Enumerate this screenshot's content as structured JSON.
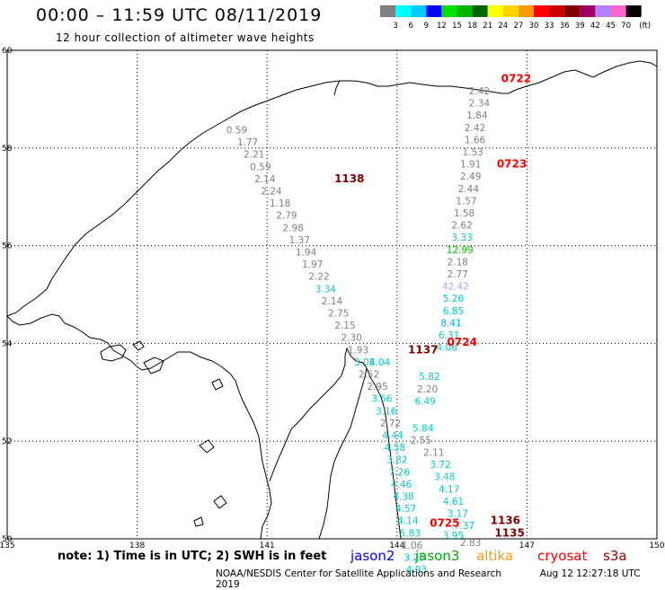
{
  "title": "00:00 – 11:59 UTC 08/11/2019",
  "subtitle": "12 hour collection of altimeter wave heights",
  "note": "note: 1) Time is in UTC; 2) SWH is in feet",
  "credit": "NOAA/NESDIS Center for Satellite Applications and Research",
  "generated": "Aug 12 12:27:18 UTC 2019",
  "legend": {
    "unit": "(ft)",
    "labels": [
      "3",
      "6",
      "9",
      "12",
      "15",
      "18",
      "21",
      "24",
      "27",
      "30",
      "33",
      "36",
      "39",
      "42",
      "45",
      "70"
    ],
    "colors": [
      "#7f7f7f",
      "#00ffff",
      "#00ccff",
      "#0000ff",
      "#00e100",
      "#00b400",
      "#006400",
      "#ffff00",
      "#ffd200",
      "#ff9900",
      "#ff0000",
      "#c80000",
      "#800000",
      "#a00060",
      "#b480ff",
      "#ff66cc",
      "#000000"
    ]
  },
  "satellites": [
    {
      "name": "jason2",
      "color": "#0000ff"
    },
    {
      "name": "jason3",
      "color": "#00aa00"
    },
    {
      "name": "altika",
      "color": "#ff9900"
    },
    {
      "name": "cryosat",
      "color": "#ff0000"
    },
    {
      "name": "s3a",
      "color": "#a00000"
    }
  ],
  "axes": {
    "lon_ticks": [
      "135",
      "138",
      "141",
      "144",
      "147",
      "150"
    ],
    "lat_ticks": [
      "50",
      "52",
      "54",
      "56",
      "58",
      "60"
    ]
  },
  "track_times": [
    {
      "label": "0722",
      "color": "#ff0000",
      "lon": 146.75,
      "lat": 59.35
    },
    {
      "label": "0723",
      "color": "#ff0000",
      "lon": 146.65,
      "lat": 57.6
    },
    {
      "label": "1138",
      "color": "#800000",
      "lon": 142.9,
      "lat": 57.3
    },
    {
      "label": "0724",
      "color": "#ff0000",
      "lon": 145.5,
      "lat": 53.95
    },
    {
      "label": "1137",
      "color": "#800000",
      "lon": 144.6,
      "lat": 53.8
    },
    {
      "label": "0725",
      "color": "#ff0000",
      "lon": 145.1,
      "lat": 50.25
    },
    {
      "label": "1136",
      "color": "#800000",
      "lon": 146.5,
      "lat": 50.3
    },
    {
      "label": "1135",
      "color": "#800000",
      "lon": 146.6,
      "lat": 50.05
    }
  ],
  "track_east": [
    {
      "v": "2.42",
      "c": "#808080",
      "lon": 145.9,
      "lat": 59.1
    },
    {
      "v": "2.34",
      "c": "#808080",
      "lon": 145.9,
      "lat": 58.85
    },
    {
      "v": "1.84",
      "c": "#808080",
      "lon": 145.85,
      "lat": 58.6
    },
    {
      "v": "2.42",
      "c": "#808080",
      "lon": 145.8,
      "lat": 58.35
    },
    {
      "v": "1.66",
      "c": "#808080",
      "lon": 145.8,
      "lat": 58.1
    },
    {
      "v": "1.53",
      "c": "#808080",
      "lon": 145.75,
      "lat": 57.85
    },
    {
      "v": "1.91",
      "c": "#808080",
      "lon": 145.7,
      "lat": 57.6
    },
    {
      "v": "2.49",
      "c": "#808080",
      "lon": 145.7,
      "lat": 57.35
    },
    {
      "v": "2.44",
      "c": "#808080",
      "lon": 145.65,
      "lat": 57.1
    },
    {
      "v": "1.57",
      "c": "#808080",
      "lon": 145.6,
      "lat": 56.85
    },
    {
      "v": "1.58",
      "c": "#808080",
      "lon": 145.55,
      "lat": 56.6
    },
    {
      "v": "2.62",
      "c": "#808080",
      "lon": 145.5,
      "lat": 56.35
    },
    {
      "v": "3.33",
      "c": "#00cccc",
      "lon": 145.5,
      "lat": 56.1
    },
    {
      "v": "12.99",
      "c": "#00c800",
      "lon": 145.45,
      "lat": 55.85
    },
    {
      "v": "2.18",
      "c": "#808080",
      "lon": 145.4,
      "lat": 55.6
    },
    {
      "v": "2.77",
      "c": "#808080",
      "lon": 145.4,
      "lat": 55.35
    },
    {
      "v": "42.42",
      "c": "#b4a0e0",
      "lon": 145.35,
      "lat": 55.1
    },
    {
      "v": "5.26",
      "c": "#00cccc",
      "lon": 145.3,
      "lat": 54.85
    },
    {
      "v": "6.85",
      "c": "#00cccc",
      "lon": 145.3,
      "lat": 54.6
    },
    {
      "v": "8.41",
      "c": "#00aaee",
      "lon": 145.25,
      "lat": 54.35
    },
    {
      "v": "6.31",
      "c": "#00cccc",
      "lon": 145.2,
      "lat": 54.1
    },
    {
      "v": "4.06",
      "c": "#00cccc",
      "lon": 145.15,
      "lat": 53.85
    },
    {
      "v": "5.82",
      "c": "#00cccc",
      "lon": 144.75,
      "lat": 53.25
    },
    {
      "v": "2.20",
      "c": "#808080",
      "lon": 144.7,
      "lat": 53.0
    },
    {
      "v": "6.49",
      "c": "#00cccc",
      "lon": 144.65,
      "lat": 52.75
    },
    {
      "v": "5.84",
      "c": "#00cccc",
      "lon": 144.6,
      "lat": 52.2
    },
    {
      "v": "2.55",
      "c": "#808080",
      "lon": 144.55,
      "lat": 51.95
    },
    {
      "v": "2.11",
      "c": "#808080",
      "lon": 144.85,
      "lat": 51.7
    },
    {
      "v": "3.72",
      "c": "#00cccc",
      "lon": 145.0,
      "lat": 51.45
    },
    {
      "v": "3.48",
      "c": "#00cccc",
      "lon": 145.1,
      "lat": 51.2
    },
    {
      "v": "4.17",
      "c": "#00cccc",
      "lon": 145.2,
      "lat": 50.95
    },
    {
      "v": "4.61",
      "c": "#00cccc",
      "lon": 145.3,
      "lat": 50.7
    },
    {
      "v": "3.17",
      "c": "#00cccc",
      "lon": 145.4,
      "lat": 50.45
    },
    {
      "v": "7.37",
      "c": "#00cccc",
      "lon": 145.55,
      "lat": 50.2
    },
    {
      "v": "3.95",
      "c": "#00cccc",
      "lon": 145.3,
      "lat": 50.0
    },
    {
      "v": "2.83",
      "c": "#808080",
      "lon": 145.7,
      "lat": 49.85
    }
  ],
  "track_west": [
    {
      "v": "0.59",
      "c": "#808080",
      "lon": 140.3,
      "lat": 58.3
    },
    {
      "v": "1.77",
      "c": "#808080",
      "lon": 140.55,
      "lat": 58.05
    },
    {
      "v": "2.21",
      "c": "#808080",
      "lon": 140.7,
      "lat": 57.8
    },
    {
      "v": "0.59",
      "c": "#808080",
      "lon": 140.85,
      "lat": 57.55
    },
    {
      "v": "2.14",
      "c": "#808080",
      "lon": 140.95,
      "lat": 57.3
    },
    {
      "v": "2.24",
      "c": "#808080",
      "lon": 141.1,
      "lat": 57.05
    },
    {
      "v": "1.18",
      "c": "#808080",
      "lon": 141.3,
      "lat": 56.8
    },
    {
      "v": "2.79",
      "c": "#808080",
      "lon": 141.45,
      "lat": 56.55
    },
    {
      "v": "2.98",
      "c": "#808080",
      "lon": 141.6,
      "lat": 56.3
    },
    {
      "v": "1.37",
      "c": "#808080",
      "lon": 141.75,
      "lat": 56.05
    },
    {
      "v": "1.94",
      "c": "#808080",
      "lon": 141.9,
      "lat": 55.8
    },
    {
      "v": "1.97",
      "c": "#808080",
      "lon": 142.05,
      "lat": 55.55
    },
    {
      "v": "2.22",
      "c": "#808080",
      "lon": 142.2,
      "lat": 55.3
    },
    {
      "v": "3.34",
      "c": "#00cccc",
      "lon": 142.35,
      "lat": 55.05
    },
    {
      "v": "2.14",
      "c": "#808080",
      "lon": 142.5,
      "lat": 54.8
    },
    {
      "v": "2.75",
      "c": "#808080",
      "lon": 142.65,
      "lat": 54.55
    },
    {
      "v": "2.15",
      "c": "#808080",
      "lon": 142.8,
      "lat": 54.3
    },
    {
      "v": "2.30",
      "c": "#808080",
      "lon": 142.95,
      "lat": 54.05
    },
    {
      "v": "1.93",
      "c": "#808080",
      "lon": 143.1,
      "lat": 53.8
    },
    {
      "v": "3.08",
      "c": "#00cccc",
      "lon": 143.25,
      "lat": 53.55
    },
    {
      "v": "4.04",
      "c": "#00cccc",
      "lon": 143.6,
      "lat": 53.55
    },
    {
      "v": "2.52",
      "c": "#808080",
      "lon": 143.35,
      "lat": 53.3
    },
    {
      "v": "2.95",
      "c": "#808080",
      "lon": 143.55,
      "lat": 53.05
    },
    {
      "v": "3.56",
      "c": "#00cccc",
      "lon": 143.65,
      "lat": 52.8
    },
    {
      "v": "3.16",
      "c": "#00cccc",
      "lon": 143.75,
      "lat": 52.55
    },
    {
      "v": "2.72",
      "c": "#808080",
      "lon": 143.85,
      "lat": 52.3
    },
    {
      "v": "4.44",
      "c": "#00cccc",
      "lon": 143.9,
      "lat": 52.05
    },
    {
      "v": "4.58",
      "c": "#00cccc",
      "lon": 143.95,
      "lat": 51.8
    },
    {
      "v": "3.82",
      "c": "#00cccc",
      "lon": 144.0,
      "lat": 51.55
    },
    {
      "v": "7.26",
      "c": "#00cccc",
      "lon": 144.05,
      "lat": 51.3
    },
    {
      "v": "4.46",
      "c": "#00cccc",
      "lon": 144.1,
      "lat": 51.05
    },
    {
      "v": "4.38",
      "c": "#00cccc",
      "lon": 144.15,
      "lat": 50.8
    },
    {
      "v": "4.57",
      "c": "#00cccc",
      "lon": 144.2,
      "lat": 50.55
    },
    {
      "v": "4.14",
      "c": "#00cccc",
      "lon": 144.25,
      "lat": 50.3
    },
    {
      "v": "5.83",
      "c": "#00cccc",
      "lon": 144.3,
      "lat": 50.05
    },
    {
      "v": "1.06",
      "c": "#808080",
      "lon": 144.35,
      "lat": 49.8
    },
    {
      "v": "3.25",
      "c": "#00cccc",
      "lon": 144.4,
      "lat": 49.55
    },
    {
      "v": "4.93",
      "c": "#00cccc",
      "lon": 144.45,
      "lat": 49.3
    }
  ]
}
